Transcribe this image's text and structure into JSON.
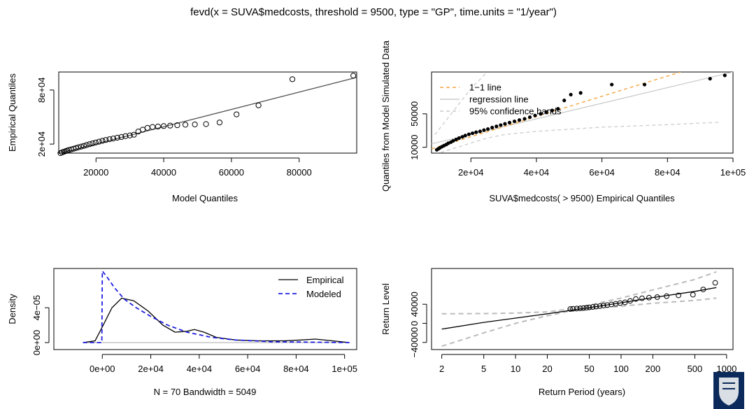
{
  "figure_title": "fevd(x = SUVA$medcosts, threshold = 9500, type = \"GP\", time.units = \"1/year\")",
  "colors": {
    "axis": "#000000",
    "line": "#555555",
    "orange": "#f5a742",
    "grey": "#cccccc",
    "blue": "#1f1fe0"
  },
  "chart_data": [
    {
      "type": "scatter",
      "xlabel": "Model Quantiles",
      "ylabel": "Empirical Quantiles",
      "x_ticks": [
        "20000",
        "40000",
        "60000",
        "80000"
      ],
      "y_ticks": [
        "2e+04",
        "8e+04"
      ],
      "xlim": [
        9000,
        97000
      ],
      "ylim": [
        10000,
        100000
      ],
      "points": [
        [
          9500,
          10000
        ],
        [
          10000,
          10800
        ],
        [
          10500,
          11500
        ],
        [
          11000,
          12200
        ],
        [
          11500,
          12800
        ],
        [
          12000,
          13400
        ],
        [
          12700,
          14100
        ],
        [
          13400,
          14900
        ],
        [
          14100,
          15600
        ],
        [
          14800,
          16400
        ],
        [
          15600,
          17200
        ],
        [
          16400,
          18000
        ],
        [
          17200,
          18900
        ],
        [
          18100,
          19900
        ],
        [
          19000,
          20800
        ],
        [
          19900,
          21800
        ],
        [
          20900,
          22700
        ],
        [
          21900,
          23700
        ],
        [
          22900,
          24600
        ],
        [
          24000,
          25400
        ],
        [
          25100,
          26200
        ],
        [
          26300,
          27100
        ],
        [
          27500,
          27900
        ],
        [
          28700,
          28800
        ],
        [
          30000,
          29600
        ],
        [
          31200,
          30400
        ],
        [
          32500,
          34000
        ],
        [
          33800,
          36000
        ],
        [
          35200,
          38000
        ],
        [
          36700,
          39000
        ],
        [
          38300,
          39500
        ],
        [
          40000,
          40000
        ],
        [
          41900,
          40500
        ],
        [
          44000,
          41000
        ],
        [
          46400,
          41500
        ],
        [
          49200,
          41800
        ],
        [
          52500,
          42200
        ],
        [
          56500,
          44000
        ],
        [
          61500,
          53000
        ],
        [
          68000,
          63000
        ],
        [
          78000,
          92000
        ],
        [
          96000,
          96000
        ]
      ],
      "line": [
        [
          9000,
          9500
        ],
        [
          97000,
          94000
        ]
      ]
    },
    {
      "type": "scatter",
      "xlabel": "SUVA$medcosts( > 9500) Empirical Quantiles",
      "ylabel": "Quantiles from Model Simulated Data",
      "x_ticks": [
        "2e+04",
        "4e+04",
        "6e+04",
        "8e+04",
        "1e+05"
      ],
      "y_ticks": [
        "10000",
        "50000"
      ],
      "xlim": [
        8000,
        100000
      ],
      "ylim": [
        3000,
        100000
      ],
      "legend": [
        "1−1 line",
        "regression line",
        "95% confidence bands"
      ],
      "legend_position": "top-left",
      "points": [
        [
          9600,
          7000
        ],
        [
          10100,
          8200
        ],
        [
          10600,
          9500
        ],
        [
          11200,
          10800
        ],
        [
          11800,
          12000
        ],
        [
          12500,
          13300
        ],
        [
          13100,
          14800
        ],
        [
          13900,
          16100
        ],
        [
          14600,
          17700
        ],
        [
          15500,
          19300
        ],
        [
          16400,
          21000
        ],
        [
          17400,
          22500
        ],
        [
          18300,
          24000
        ],
        [
          19400,
          25500
        ],
        [
          20500,
          26800
        ],
        [
          21600,
          28000
        ],
        [
          22800,
          29000
        ],
        [
          24000,
          30500
        ],
        [
          25200,
          31800
        ],
        [
          26500,
          33500
        ],
        [
          27800,
          35000
        ],
        [
          29100,
          36500
        ],
        [
          30400,
          38000
        ],
        [
          31800,
          39500
        ],
        [
          33300,
          41000
        ],
        [
          34800,
          42500
        ],
        [
          36400,
          44000
        ],
        [
          38000,
          46000
        ],
        [
          39600,
          48000
        ],
        [
          41300,
          50000
        ],
        [
          43000,
          52000
        ],
        [
          44800,
          54000
        ],
        [
          46600,
          56000
        ],
        [
          48500,
          66000
        ],
        [
          50500,
          73000
        ],
        [
          53500,
          75000
        ],
        [
          63000,
          85000
        ],
        [
          73000,
          85000
        ],
        [
          93000,
          92000
        ],
        [
          97500,
          96000
        ]
      ],
      "one_one_line": [
        [
          8000,
          8000
        ],
        [
          84000,
          100000
        ]
      ],
      "regression_line": [
        [
          8000,
          14000
        ],
        [
          100000,
          100000
        ]
      ],
      "band_upper": [
        [
          9000,
          25000
        ],
        [
          15000,
          55000
        ],
        [
          20000,
          80000
        ],
        [
          25000,
          100000
        ]
      ],
      "band_lower": [
        [
          9000,
          1500
        ],
        [
          20000,
          15000
        ],
        [
          25000,
          21000
        ],
        [
          30000,
          25000
        ],
        [
          40000,
          29000
        ],
        [
          60000,
          34000
        ],
        [
          80000,
          37000
        ],
        [
          96000,
          40000
        ]
      ]
    },
    {
      "type": "line",
      "xlabel": "N = 70   Bandwidth = 5049",
      "ylabel": "Density",
      "x_ticks": [
        "0e+00",
        "2e+04",
        "4e+04",
        "6e+04",
        "8e+04",
        "1e+05"
      ],
      "y_ticks": [
        "0e+00",
        "4e−05"
      ],
      "xlim": [
        -20000,
        105000
      ],
      "ylim": [
        -8e-06,
        8.5e-05
      ],
      "legend": [
        "Empirical",
        "Modeled"
      ],
      "legend_position": "top-right",
      "series": [
        {
          "name": "Empirical",
          "values": [
            [
              -8000,
              0
            ],
            [
              -3000,
              2e-06
            ],
            [
              0,
              1.8e-05
            ],
            [
              4000,
              4e-05
            ],
            [
              8000,
              5.1e-05
            ],
            [
              13000,
              4.8e-05
            ],
            [
              19000,
              3.6e-05
            ],
            [
              25000,
              2e-05
            ],
            [
              30000,
              1.2e-05
            ],
            [
              35000,
              1.3e-05
            ],
            [
              38000,
              1.5e-05
            ],
            [
              42000,
              1.2e-05
            ],
            [
              47000,
              6e-06
            ],
            [
              55000,
              3e-06
            ],
            [
              65000,
              2e-06
            ],
            [
              75000,
              2e-06
            ],
            [
              82000,
              3e-06
            ],
            [
              88000,
              4e-06
            ],
            [
              95000,
              2e-06
            ],
            [
              102000,
              0
            ]
          ]
        },
        {
          "name": "Modeled",
          "values": [
            [
              -8000,
              0
            ],
            [
              -200,
              0
            ],
            [
              0,
              8.2e-05
            ],
            [
              2000,
              7.5e-05
            ],
            [
              5000,
              6.3e-05
            ],
            [
              9000,
              5e-05
            ],
            [
              14000,
              4e-05
            ],
            [
              20000,
              3e-05
            ],
            [
              27000,
              2e-05
            ],
            [
              35000,
              1.2e-05
            ],
            [
              45000,
              6e-06
            ],
            [
              55000,
              3e-06
            ],
            [
              70000,
              1e-06
            ],
            [
              85000,
              5e-07
            ],
            [
              102000,
              0
            ]
          ]
        }
      ]
    },
    {
      "type": "line",
      "xlabel": "Return Period (years)",
      "ylabel": "Return Level",
      "x_ticks": [
        "2",
        "5",
        "10",
        "20",
        "50",
        "100",
        "200",
        "500",
        "1000"
      ],
      "y_ticks": [
        "−40000",
        "0",
        "40000"
      ],
      "xlim": [
        1.6,
        1150
      ],
      "ylim": [
        -55000,
        115000
      ],
      "fit": [
        [
          2,
          -12000
        ],
        [
          5,
          2000
        ],
        [
          10,
          11000
        ],
        [
          20,
          20000
        ],
        [
          50,
          33000
        ],
        [
          100,
          43000
        ],
        [
          200,
          54000
        ],
        [
          500,
          67000
        ],
        [
          800,
          75000
        ]
      ],
      "ci_upper": [
        [
          2,
          20000
        ],
        [
          5,
          20500
        ],
        [
          10,
          21500
        ],
        [
          20,
          24000
        ],
        [
          35,
          31000
        ],
        [
          50,
          38000
        ],
        [
          100,
          53000
        ],
        [
          200,
          70000
        ],
        [
          500,
          92000
        ],
        [
          800,
          108000
        ]
      ],
      "ci_lower": [
        [
          2,
          -48000
        ],
        [
          5,
          -20000
        ],
        [
          10,
          0
        ],
        [
          20,
          16000
        ],
        [
          35,
          27000
        ],
        [
          50,
          30000
        ],
        [
          100,
          36000
        ],
        [
          200,
          42000
        ],
        [
          500,
          48000
        ],
        [
          800,
          53000
        ]
      ],
      "points": [
        [
          33,
          30000
        ],
        [
          35,
          30500
        ],
        [
          38,
          31000
        ],
        [
          41,
          31500
        ],
        [
          44,
          32000
        ],
        [
          47,
          32700
        ],
        [
          50,
          33500
        ],
        [
          54,
          34300
        ],
        [
          58,
          35200
        ],
        [
          63,
          36200
        ],
        [
          68,
          37300
        ],
        [
          74,
          38400
        ],
        [
          81,
          39600
        ],
        [
          89,
          41000
        ],
        [
          98,
          42500
        ],
        [
          109,
          44000
        ],
        [
          122,
          47000
        ],
        [
          138,
          51000
        ],
        [
          158,
          52500
        ],
        [
          184,
          53800
        ],
        [
          220,
          55000
        ],
        [
          270,
          57000
        ],
        [
          350,
          58500
        ],
        [
          480,
          60000
        ],
        [
          600,
          71000
        ],
        [
          780,
          85000
        ]
      ]
    }
  ]
}
